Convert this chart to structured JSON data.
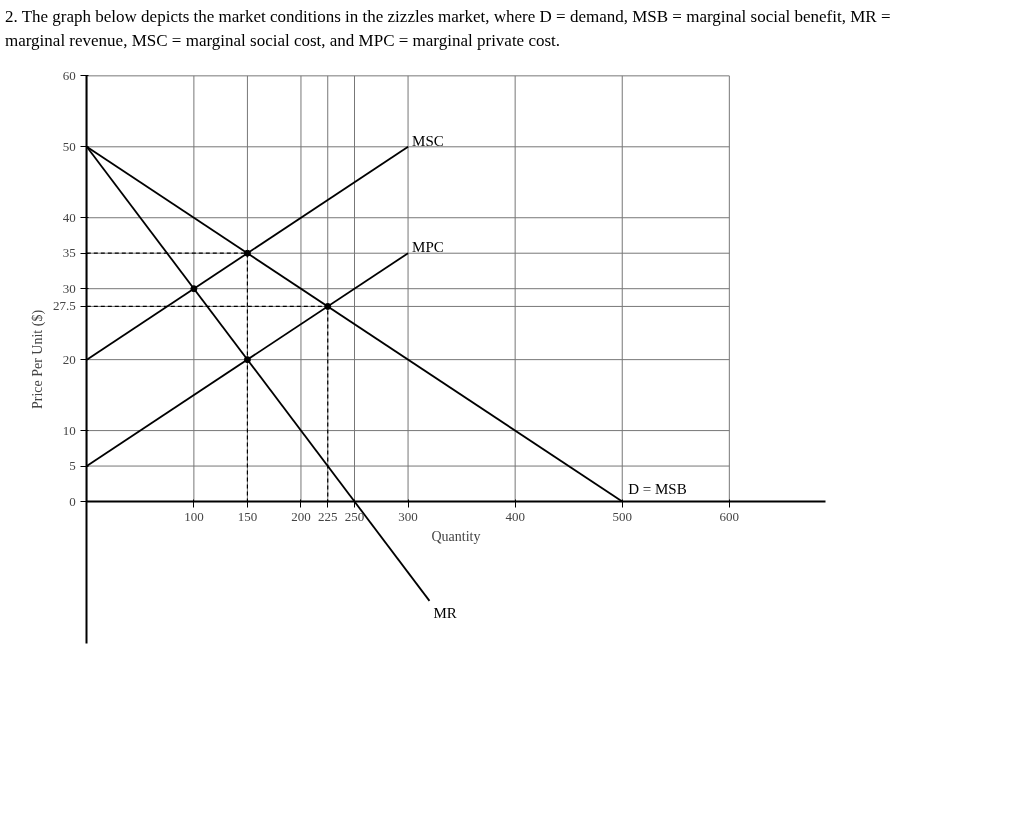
{
  "chart_data": {
    "type": "line",
    "title": "2. The graph below depicts the market conditions in the zizzles market, where D = demand, MSB = marginal social benefit, MR = marginal revenue, MSC = marginal social cost, and MPC = marginal private cost.",
    "xlabel": "Quantity",
    "ylabel": "Price Per Unit ($)",
    "xlim": [
      0,
      690
    ],
    "ylim": [
      -20,
      60
    ],
    "xticks": [
      {
        "value": 0,
        "label": null
      },
      100,
      150,
      200,
      225,
      250,
      300,
      400,
      500,
      600
    ],
    "yticks": [
      0,
      5,
      10,
      20,
      27.5,
      30,
      35,
      40,
      50,
      60
    ],
    "grid": true,
    "line_style": "solid",
    "marker": "none",
    "series": [
      {
        "name": "D = MSB",
        "color": "#000000",
        "x": [
          0,
          500
        ],
        "values": [
          50,
          0
        ]
      },
      {
        "name": "MR",
        "color": "#000000",
        "x": [
          0,
          320
        ],
        "values": [
          50,
          -14
        ]
      },
      {
        "name": "MSC",
        "color": "#000000",
        "x": [
          0,
          300
        ],
        "values": [
          20,
          50
        ]
      },
      {
        "name": "MPC",
        "color": "#000000",
        "x": [
          0,
          300
        ],
        "values": [
          5,
          35
        ]
      },
      {
        "color": "#000000",
        "line_style": "dashed",
        "x": [
          0,
          150,
          150
        ],
        "values": [
          35,
          35,
          0
        ]
      },
      {
        "color": "#000000",
        "line_style": "dashed",
        "x": [
          0,
          225,
          225
        ],
        "values": [
          27.5,
          27.5,
          0
        ]
      },
      {
        "type": "scatter",
        "marker": "circle",
        "color": "#000000",
        "x": [
          100,
          150,
          150,
          225
        ],
        "values": [
          30,
          35,
          20,
          27.5
        ]
      }
    ]
  }
}
